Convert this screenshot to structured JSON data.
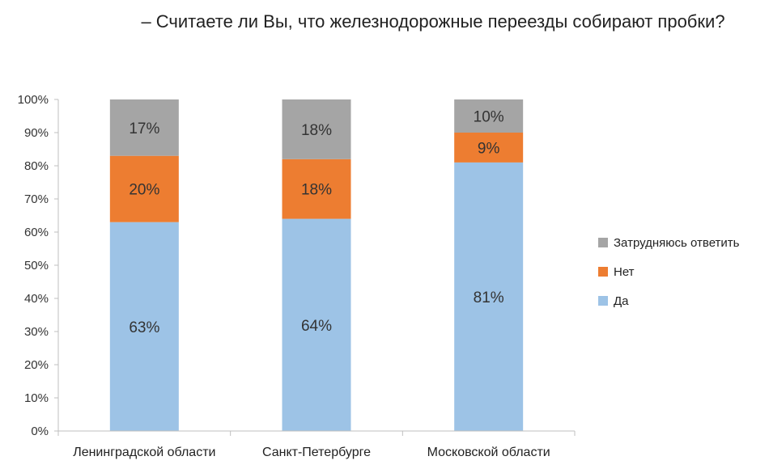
{
  "chart_data": {
    "type": "bar",
    "stacked": true,
    "title": "– Считаете ли Вы, что железнодорожные переезды собирают пробки?",
    "categories": [
      "Ленинградской области",
      "Санкт-Петербурге",
      "Московской области"
    ],
    "series": [
      {
        "name": "Да",
        "color": "#9DC3E6",
        "values": [
          63,
          64,
          81
        ],
        "labels": [
          "63%",
          "64%",
          "81%"
        ]
      },
      {
        "name": "Нет",
        "color": "#ED7D31",
        "values": [
          20,
          18,
          9
        ],
        "labels": [
          "20%",
          "18%",
          "9%"
        ]
      },
      {
        "name": "Затрудняюсь ответить",
        "color": "#A5A5A5",
        "values": [
          17,
          18,
          10
        ],
        "labels": [
          "17%",
          "18%",
          "10%"
        ]
      }
    ],
    "y_ticks": [
      "0%",
      "10%",
      "20%",
      "30%",
      "40%",
      "50%",
      "60%",
      "70%",
      "80%",
      "90%",
      "100%"
    ],
    "ylim": [
      0,
      100
    ],
    "legend_order": [
      "Затрудняюсь ответить",
      "Нет",
      "Да"
    ],
    "legend_position": "right",
    "grid": false
  }
}
